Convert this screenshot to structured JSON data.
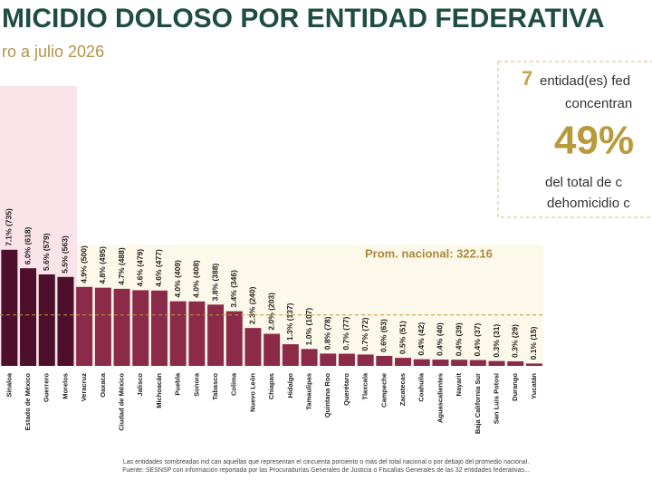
{
  "chart_data": {
    "type": "bar",
    "title": "MICIDIO DOLOSO POR ENTIDAD FEDERATIVA",
    "subtitle": "ro a julio 2026",
    "categories": [
      "Sinaloa",
      "Estado de México",
      "Guerrero",
      "Morelos",
      "Veracruz",
      "Oaxaca",
      "Ciudad de México",
      "Jalisco",
      "Michoacán",
      "Puebla",
      "Sonora",
      "Tabasco",
      "Colima",
      "Nuevo León",
      "Chiapas",
      "Hidalgo",
      "Tamaulipas",
      "Quintana Roo",
      "Querétaro",
      "Tlaxcala",
      "Campeche",
      "Zacatecas",
      "Coahuila",
      "Aguascalientes",
      "Nayarit",
      "Baja California Sur",
      "San Luis Potosí",
      "Durango",
      "Yucatán"
    ],
    "values": [
      735,
      618,
      579,
      563,
      500,
      495,
      488,
      479,
      477,
      409,
      408,
      388,
      346,
      240,
      203,
      137,
      107,
      78,
      77,
      72,
      63,
      51,
      42,
      40,
      39,
      37,
      31,
      29,
      15
    ],
    "value_labels": [
      "7.1% (735)",
      "6.0% (618)",
      "5.6% (579)",
      "5.5% (563)",
      "4.9% (500)",
      "4.8% (495)",
      "4.7% (488)",
      "4.6% (479)",
      "4.6% (477)",
      "4.0% (409)",
      "4.0% (408)",
      "3.8% (388)",
      "3.4% (346)",
      "2.3% (240)",
      "2.0% (203)",
      "1.3% (137)",
      "1.0% (107)",
      "0.8% (78)",
      "0.7% (77)",
      "0.7% (72)",
      "0.6% (63)",
      "0.5% (51)",
      "0.4% (42)",
      "0.4% (40)",
      "0.4% (39)",
      "0.4% (37)",
      "0.3% (31)",
      "0.3% (29)",
      "0.1% (15)"
    ],
    "colors": [
      "#4d0f2c",
      "#4d0f2c",
      "#4d0f2c",
      "#4d0f2c",
      "#8c2a4a",
      "#8c2a4a",
      "#8c2a4a",
      "#8c2a4a",
      "#8c2a4a",
      "#8c2a4a",
      "#8c2a4a",
      "#8c2a4a",
      "#8c2a4a",
      "#8c2a4a",
      "#8c2a4a",
      "#8c2a4a",
      "#8c2a4a",
      "#8c2a4a",
      "#8c2a4a",
      "#8c2a4a",
      "#8c2a4a",
      "#8c2a4a",
      "#8c2a4a",
      "#8c2a4a",
      "#8c2a4a",
      "#8c2a4a",
      "#8c2a4a",
      "#8c2a4a",
      "#8c2a4a"
    ],
    "ylim": [
      0,
      900
    ],
    "average": {
      "value": 322.16,
      "label": "Prom. nacional: 322.16"
    },
    "callout": {
      "count": "7",
      "line1": "entidad(es) fed",
      "line2": "concentran",
      "percent": "49%",
      "line3": "del total de c",
      "line4": "dehomicidio c"
    },
    "footnotes": [
      "Las entidades sombreadas ind can aquellas que representan el cincuenta porciento o más del total nacional o por debajo del promedio nacional.",
      "Fuente: SESNSP con información reportada por las Procuradurías Generales de Justicia o Fiscalías Generales de las 32 entidades federativas..."
    ]
  }
}
